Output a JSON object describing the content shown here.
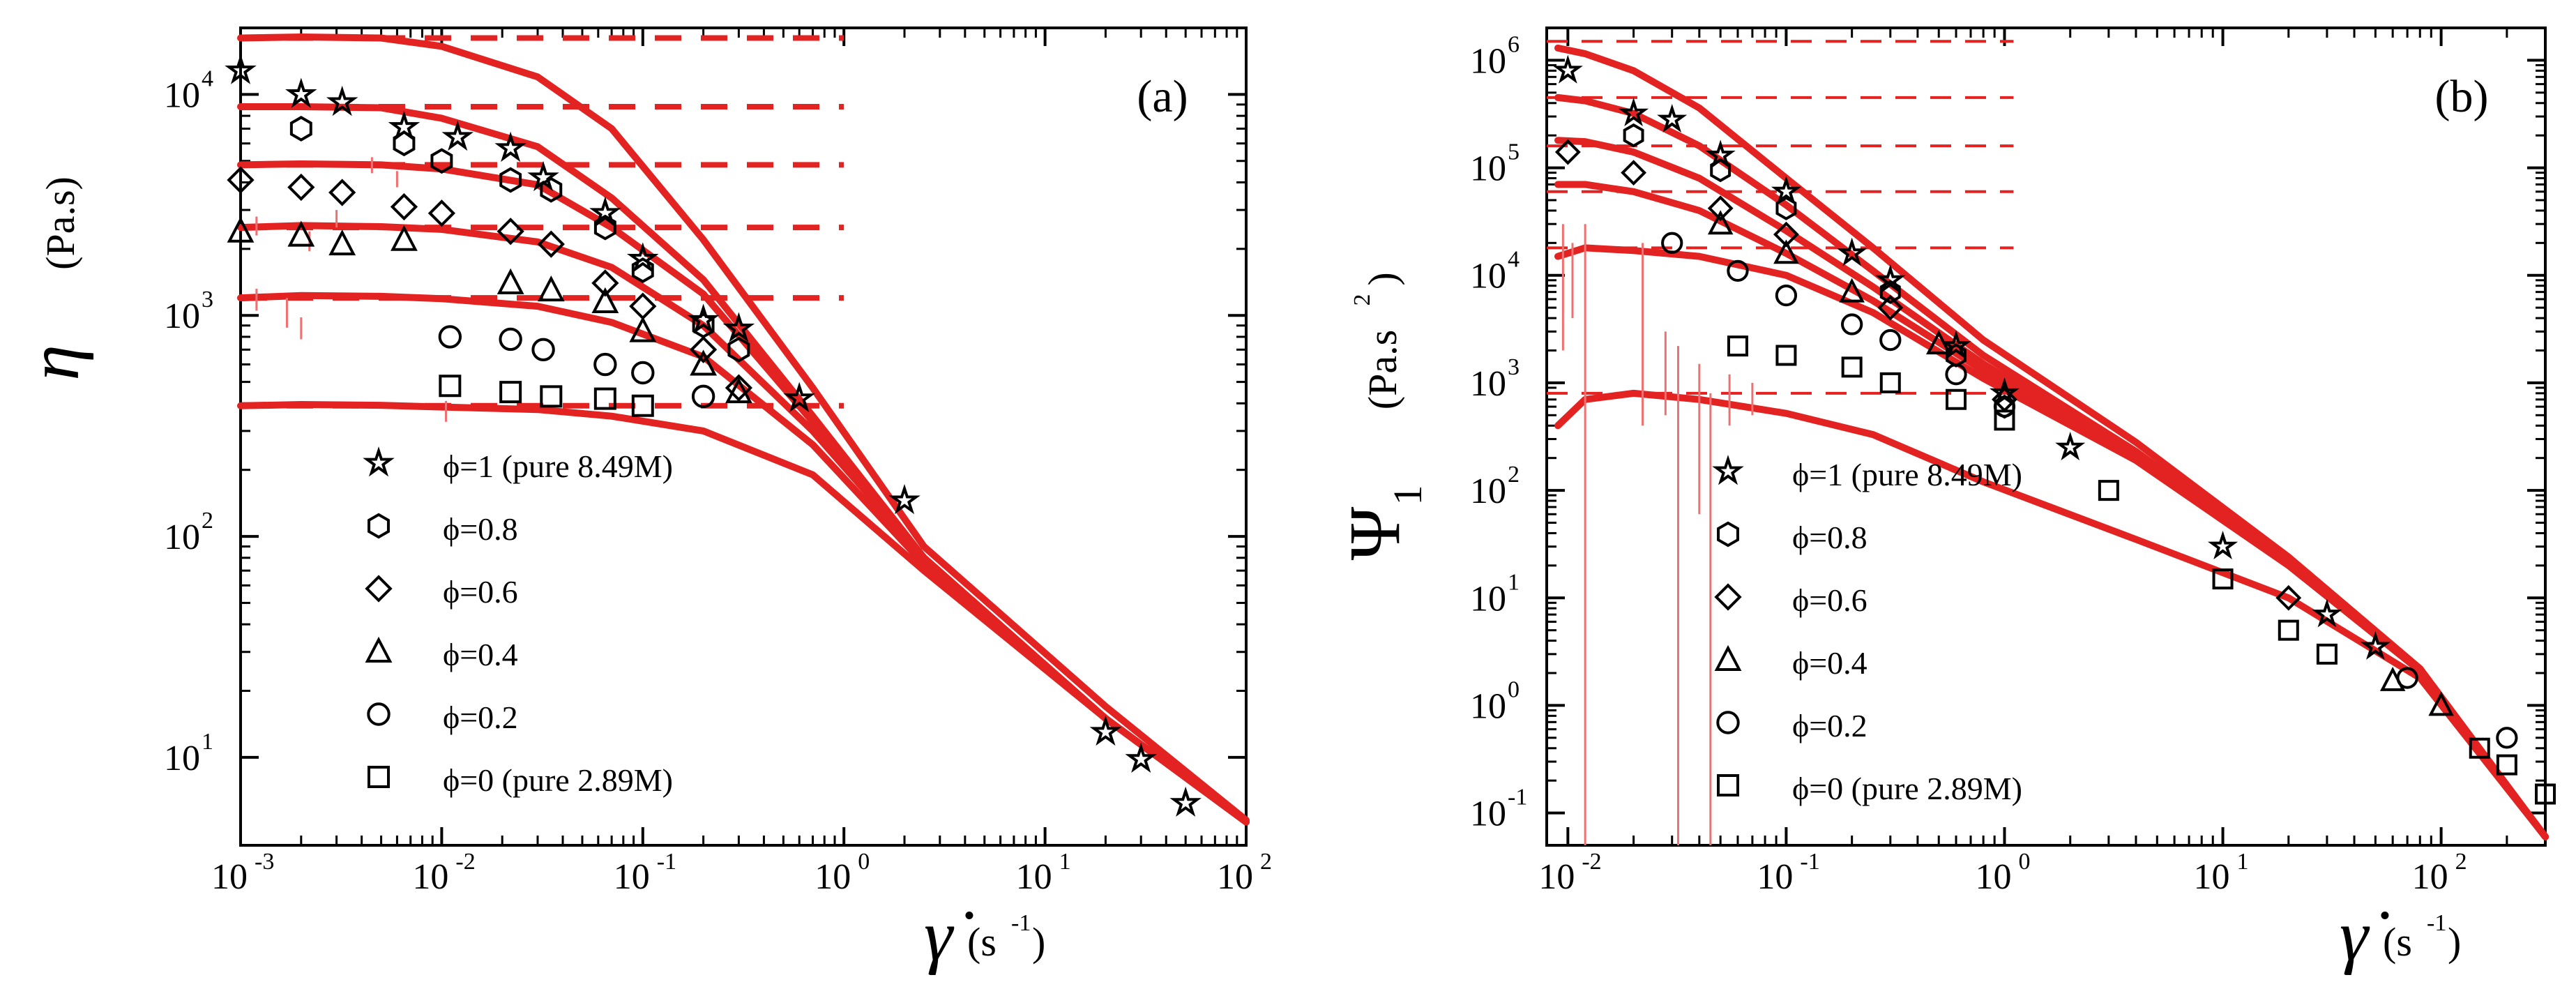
{
  "figure": {
    "description_texts": [
      "(a)",
      "(b)"
    ]
  },
  "chart_data": [
    {
      "panel": "(a)",
      "type": "scatter",
      "xlabel": "γ̇ (s⁻¹)",
      "ylabel": "η (Pa.s)",
      "x_scale": "log",
      "y_scale": "log",
      "xlim": [
        0.001,
        100
      ],
      "ylim": [
        4,
        20000
      ],
      "x_ticks": [
        0.001,
        0.01,
        0.1,
        1,
        10,
        100
      ],
      "y_ticks": [
        10,
        100,
        1000,
        10000
      ],
      "legend": [
        "ϕ=1 (pure 8.49M)",
        "ϕ=0.8",
        "ϕ=0.6",
        "ϕ=0.4",
        "ϕ=0.2",
        "ϕ=0 (pure 2.89M)"
      ],
      "series": [
        {
          "name": "ϕ=1 (pure 8.49M)",
          "marker": "star",
          "x": [
            0.001,
            0.002,
            0.0032,
            0.0065,
            0.012,
            0.022,
            0.032,
            0.065,
            0.1,
            0.2,
            0.3,
            0.6,
            2,
            20,
            30,
            50
          ],
          "y": [
            12800,
            10000,
            9200,
            7100,
            6400,
            5700,
            4200,
            2900,
            1800,
            950,
            870,
            420,
            145,
            13,
            9.8,
            6.2
          ],
          "model": [
            18000,
            18200,
            18000,
            16500,
            12000,
            7000,
            2200,
            470,
            90,
            17,
            5.2
          ]
        },
        {
          "name": "ϕ=0.8",
          "marker": "hexagon",
          "x": [
            0.002,
            0.0065,
            0.01,
            0.022,
            0.035,
            0.065,
            0.1,
            0.2,
            0.3
          ],
          "y": [
            7000,
            6000,
            5000,
            4100,
            3700,
            2500,
            1600,
            900,
            700
          ],
          "model": [
            8800,
            8800,
            8700,
            7800,
            5800,
            3400,
            1450,
            350,
            80,
            15,
            5.1
          ]
        },
        {
          "name": "ϕ=0.6",
          "marker": "diamond",
          "x": [
            0.001,
            0.002,
            0.0032,
            0.0065,
            0.01,
            0.022,
            0.035,
            0.065,
            0.1,
            0.2,
            0.3
          ],
          "y": [
            4100,
            3800,
            3600,
            3100,
            2900,
            2400,
            2100,
            1400,
            1100,
            700,
            470
          ],
          "model": [
            4800,
            4850,
            4800,
            4600,
            3900,
            2500,
            1250,
            330,
            80,
            15,
            5.1
          ]
        },
        {
          "name": "ϕ=0.4",
          "marker": "triangle",
          "x": [
            0.001,
            0.002,
            0.0032,
            0.0065,
            0.022,
            0.035,
            0.065,
            0.1,
            0.2,
            0.3
          ],
          "y": [
            2400,
            2300,
            2100,
            2200,
            1400,
            1300,
            1150,
            850,
            600,
            450
          ],
          "model": [
            2500,
            2550,
            2520,
            2450,
            2150,
            1650,
            900,
            300,
            80,
            15,
            5.1
          ]
        },
        {
          "name": "ϕ=0.2",
          "marker": "circle",
          "x": [
            0.011,
            0.022,
            0.032,
            0.065,
            0.1,
            0.2
          ],
          "y": [
            800,
            780,
            700,
            600,
            550,
            430
          ],
          "model": [
            1200,
            1230,
            1220,
            1190,
            1100,
            930,
            650,
            260,
            75,
            15,
            5.1
          ]
        },
        {
          "name": "ϕ=0 (pure 2.89M)",
          "marker": "square",
          "x": [
            0.011,
            0.022,
            0.035,
            0.065,
            0.1
          ],
          "y": [
            480,
            450,
            430,
            420,
            390
          ],
          "model": [
            390,
            395,
            392,
            385,
            375,
            350,
            300,
            190,
            70,
            15,
            5.1
          ]
        }
      ],
      "zero_shear_plateaus": [
        18000,
        8800,
        4800,
        2500,
        1200,
        390
      ]
    },
    {
      "panel": "(b)",
      "type": "scatter",
      "xlabel": "γ̇ (s⁻¹)",
      "ylabel": "Ψ₁ (Pa.s²)",
      "x_scale": "log",
      "y_scale": "log",
      "xlim": [
        0.008,
        300
      ],
      "ylim": [
        0.05,
        2000000
      ],
      "x_ticks": [
        0.01,
        0.1,
        1,
        10,
        100
      ],
      "y_ticks": [
        0.1,
        1,
        10,
        100,
        1000,
        10000,
        100000,
        1000000
      ],
      "legend": [
        "ϕ=1 (pure 8.49M)",
        "ϕ=0.8",
        "ϕ=0.6",
        "ϕ=0.4",
        "ϕ=0.2",
        "ϕ=0 (pure 2.89M)"
      ],
      "series": [
        {
          "name": "ϕ=1 (pure 8.49M)",
          "marker": "star",
          "x": [
            0.01,
            0.02,
            0.03,
            0.05,
            0.1,
            0.2,
            0.3,
            0.6,
            1,
            2,
            10,
            30,
            50
          ],
          "y": [
            800000,
            320000,
            280000,
            130000,
            60000,
            16000,
            9000,
            2200,
            800,
            250,
            30,
            7,
            3.5
          ],
          "model": [
            1300000,
            1150000,
            800000,
            360000,
            80000,
            18000,
            2500,
            280,
            24,
            2.2,
            0.06
          ]
        },
        {
          "name": "ϕ=0.8",
          "marker": "hexagon",
          "x": [
            0.02,
            0.05,
            0.1,
            0.3,
            0.6,
            1
          ],
          "y": [
            200000,
            95000,
            42000,
            7000,
            1800,
            600
          ],
          "model": [
            450000,
            420000,
            320000,
            160000,
            45000,
            11000,
            1800,
            230,
            22,
            2.1,
            0.06
          ]
        },
        {
          "name": "ϕ=0.6",
          "marker": "diamond",
          "x": [
            0.01,
            0.02,
            0.05,
            0.1,
            0.3,
            1,
            20
          ],
          "y": [
            140000,
            90000,
            42000,
            24000,
            5000,
            700,
            10
          ],
          "model": [
            180000,
            175000,
            140000,
            80000,
            26000,
            7800,
            1500,
            210,
            21,
            2.1,
            0.06
          ]
        },
        {
          "name": "ϕ=0.4",
          "marker": "triangle",
          "x": [
            0.05,
            0.1,
            0.2,
            0.5,
            60,
            100
          ],
          "y": [
            30000,
            16000,
            7000,
            2300,
            1.7,
            1.0
          ],
          "model": [
            70000,
            70000,
            60000,
            40000,
            16000,
            5800,
            1300,
            200,
            21,
            2.1,
            0.06
          ]
        },
        {
          "name": "ϕ=0.2",
          "marker": "circle",
          "x": [
            0.03,
            0.06,
            0.1,
            0.2,
            0.3,
            0.6,
            1,
            70,
            200
          ],
          "y": [
            20000,
            11000,
            6500,
            3500,
            2500,
            1200,
            600,
            1.8,
            0.5
          ],
          "model": [
            15000,
            18000,
            17000,
            15000,
            10000,
            4500,
            1100,
            190,
            20,
            2.1,
            0.06
          ]
        },
        {
          "name": "ϕ=0 (pure 2.89M)",
          "marker": "square",
          "x": [
            0.06,
            0.1,
            0.2,
            0.3,
            0.6,
            1,
            3,
            10,
            20,
            30,
            150,
            200,
            300
          ],
          "y": [
            2200,
            1800,
            1400,
            1000,
            700,
            450,
            100,
            15,
            5,
            3,
            0.4,
            0.28,
            0.15
          ],
          "model": [
            400,
            700,
            800,
            700,
            520,
            330,
            120,
            35,
            10,
            1.8,
            0.06
          ]
        }
      ],
      "zero_shear_plateaus": [
        1500000,
        450000,
        160000,
        60000,
        18000,
        800
      ]
    }
  ],
  "labels": {
    "panel_a": "(a)",
    "panel_b": "(b)",
    "eta": "η",
    "eta_units": "(Pa.s)",
    "psi": "Ψ",
    "psi_subscript": "1",
    "psi_units_prefix": "(Pa.s",
    "psi_units_power": "2",
    "psi_units_suffix": ")",
    "gamma_dot": "γ̇",
    "rate_units_prefix": "(s",
    "rate_units_power": "-1",
    "rate_units_suffix": ")"
  }
}
